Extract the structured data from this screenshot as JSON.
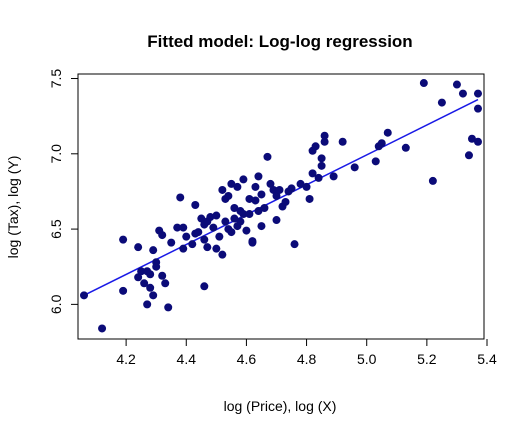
{
  "chart_data": {
    "type": "scatter",
    "title": "Fitted model: Log-log regression",
    "xlabel": "log (Price), log (X)",
    "ylabel": "log (Tax), log (Y)",
    "xlim": [
      4.04,
      5.39
    ],
    "ylim": [
      5.77,
      7.53
    ],
    "xticks": [
      4.2,
      4.4,
      4.6,
      4.8,
      5.0,
      5.2,
      5.4
    ],
    "xtick_labels": [
      "4.2",
      "4.4",
      "4.6",
      "4.8",
      "5.0",
      "5.2",
      "5.4"
    ],
    "yticks": [
      6.0,
      6.5,
      7.0,
      7.5
    ],
    "ytick_labels": [
      "6.0",
      "6.5",
      "7.0",
      "7.5"
    ],
    "grid": false,
    "point_color": "#0b0b78",
    "line_color": "#1a1ae6",
    "fit_line": {
      "x": [
        4.06,
        5.37
      ],
      "y": [
        6.06,
        7.36
      ]
    },
    "points": [
      [
        4.06,
        6.06
      ],
      [
        4.12,
        5.84
      ],
      [
        4.19,
        6.43
      ],
      [
        4.19,
        6.09
      ],
      [
        4.24,
        6.38
      ],
      [
        4.24,
        6.18
      ],
      [
        4.25,
        6.22
      ],
      [
        4.26,
        6.14
      ],
      [
        4.27,
        6.22
      ],
      [
        4.27,
        6.0
      ],
      [
        4.28,
        6.2
      ],
      [
        4.28,
        6.11
      ],
      [
        4.29,
        6.36
      ],
      [
        4.29,
        6.06
      ],
      [
        4.3,
        6.25
      ],
      [
        4.3,
        6.28
      ],
      [
        4.31,
        6.49
      ],
      [
        4.32,
        6.46
      ],
      [
        4.32,
        6.19
      ],
      [
        4.33,
        6.14
      ],
      [
        4.34,
        5.98
      ],
      [
        4.35,
        6.41
      ],
      [
        4.37,
        6.51
      ],
      [
        4.38,
        6.71
      ],
      [
        4.39,
        6.51
      ],
      [
        4.39,
        6.37
      ],
      [
        4.4,
        6.45
      ],
      [
        4.42,
        6.4
      ],
      [
        4.43,
        6.66
      ],
      [
        4.43,
        6.47
      ],
      [
        4.44,
        6.48
      ],
      [
        4.45,
        6.57
      ],
      [
        4.46,
        6.43
      ],
      [
        4.46,
        6.53
      ],
      [
        4.46,
        6.12
      ],
      [
        4.47,
        6.38
      ],
      [
        4.47,
        6.55
      ],
      [
        4.48,
        6.58
      ],
      [
        4.49,
        6.51
      ],
      [
        4.5,
        6.59
      ],
      [
        4.5,
        6.37
      ],
      [
        4.51,
        6.45
      ],
      [
        4.52,
        6.33
      ],
      [
        4.52,
        6.76
      ],
      [
        4.53,
        6.55
      ],
      [
        4.53,
        6.7
      ],
      [
        4.54,
        6.5
      ],
      [
        4.54,
        6.72
      ],
      [
        4.55,
        6.8
      ],
      [
        4.55,
        6.48
      ],
      [
        4.56,
        6.64
      ],
      [
        4.56,
        6.57
      ],
      [
        4.57,
        6.78
      ],
      [
        4.57,
        6.52
      ],
      [
        4.58,
        6.62
      ],
      [
        4.58,
        6.55
      ],
      [
        4.59,
        6.83
      ],
      [
        4.59,
        6.6
      ],
      [
        4.6,
        6.49
      ],
      [
        4.61,
        6.6
      ],
      [
        4.61,
        6.7
      ],
      [
        4.62,
        6.42
      ],
      [
        4.62,
        6.41
      ],
      [
        4.63,
        6.78
      ],
      [
        4.63,
        6.69
      ],
      [
        4.64,
        6.62
      ],
      [
        4.64,
        6.85
      ],
      [
        4.65,
        6.73
      ],
      [
        4.65,
        6.52
      ],
      [
        4.66,
        6.64
      ],
      [
        4.67,
        6.98
      ],
      [
        4.68,
        6.8
      ],
      [
        4.69,
        6.76
      ],
      [
        4.7,
        6.72
      ],
      [
        4.7,
        6.56
      ],
      [
        4.71,
        6.76
      ],
      [
        4.72,
        6.65
      ],
      [
        4.73,
        6.68
      ],
      [
        4.74,
        6.75
      ],
      [
        4.75,
        6.77
      ],
      [
        4.76,
        6.4
      ],
      [
        4.78,
        6.8
      ],
      [
        4.8,
        6.78
      ],
      [
        4.81,
        6.7
      ],
      [
        4.82,
        7.02
      ],
      [
        4.82,
        6.87
      ],
      [
        4.83,
        7.05
      ],
      [
        4.84,
        6.84
      ],
      [
        4.85,
        6.97
      ],
      [
        4.85,
        6.92
      ],
      [
        4.86,
        7.12
      ],
      [
        4.86,
        7.08
      ],
      [
        4.89,
        6.85
      ],
      [
        4.92,
        7.08
      ],
      [
        4.96,
        6.91
      ],
      [
        5.03,
        6.95
      ],
      [
        5.04,
        7.05
      ],
      [
        5.05,
        7.07
      ],
      [
        5.07,
        7.14
      ],
      [
        5.13,
        7.04
      ],
      [
        5.19,
        7.47
      ],
      [
        5.22,
        6.82
      ],
      [
        5.25,
        7.34
      ],
      [
        5.3,
        7.46
      ],
      [
        5.32,
        7.4
      ],
      [
        5.34,
        6.99
      ],
      [
        5.35,
        7.1
      ],
      [
        5.37,
        7.4
      ],
      [
        5.37,
        7.3
      ],
      [
        5.37,
        7.08
      ]
    ]
  }
}
